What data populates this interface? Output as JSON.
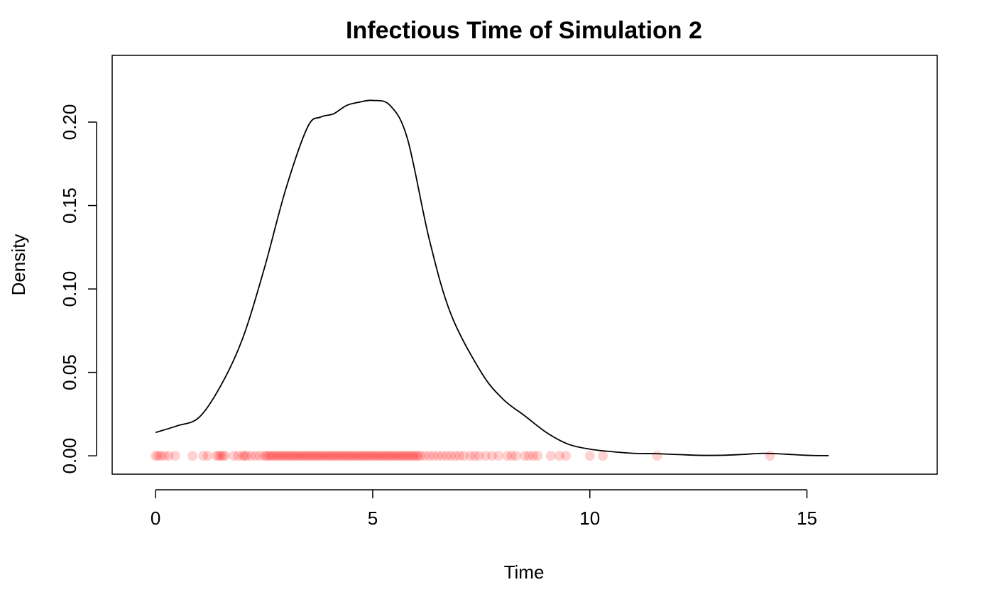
{
  "chart_data": {
    "type": "line",
    "title": "Infectious Time of Simulation 2",
    "xlabel": "Time",
    "ylabel": "Density",
    "xlim": [
      -1,
      18
    ],
    "ylim": [
      -0.011,
      0.24
    ],
    "x_ticks": [
      0,
      5,
      10,
      15
    ],
    "x_tick_labels": [
      "0",
      "5",
      "10",
      "15"
    ],
    "y_ticks": [
      0.0,
      0.05,
      0.1,
      0.15,
      0.2
    ],
    "y_tick_labels": [
      "0.00",
      "0.05",
      "0.10",
      "0.15",
      "0.20"
    ],
    "grid": false,
    "series": [
      {
        "line_color": "#000000",
        "x": [
          0.0,
          0.5,
          1.0,
          1.5,
          2.0,
          2.5,
          3.0,
          3.5,
          3.8,
          4.1,
          4.4,
          4.7,
          5.0,
          5.4,
          5.8,
          6.3,
          6.8,
          7.5,
          8.0,
          8.5,
          9.0,
          9.5,
          10.0,
          10.5,
          11.0,
          11.5,
          12.0,
          12.5,
          13.0,
          13.5,
          14.0,
          14.5,
          15.0,
          15.5
        ],
        "y": [
          0.014,
          0.018,
          0.023,
          0.042,
          0.07,
          0.112,
          0.16,
          0.197,
          0.203,
          0.205,
          0.21,
          0.212,
          0.213,
          0.21,
          0.19,
          0.13,
          0.085,
          0.05,
          0.034,
          0.024,
          0.014,
          0.007,
          0.004,
          0.0025,
          0.0015,
          0.0013,
          0.0008,
          0.0003,
          0.0003,
          0.0008,
          0.0015,
          0.001,
          0.0003,
          0.0001
        ]
      }
    ],
    "rug": {
      "color": "#ff0000",
      "opacity": 0.18,
      "y": 0,
      "x": [
        0.0,
        0.05,
        0.12,
        0.2,
        0.3,
        0.45,
        0.85,
        1.1,
        1.2,
        1.4,
        1.45,
        1.5,
        1.55,
        1.6,
        1.8,
        1.9,
        2.0,
        2.05,
        2.1,
        2.2,
        2.3,
        2.4,
        2.5,
        2.55,
        2.6,
        2.65,
        2.7,
        2.75,
        2.8,
        2.85,
        2.9,
        2.95,
        3.0,
        3.05,
        3.1,
        3.15,
        3.2,
        3.25,
        3.3,
        3.35,
        3.4,
        3.45,
        3.5,
        3.55,
        3.6,
        3.65,
        3.7,
        3.75,
        3.8,
        3.85,
        3.9,
        3.95,
        4.0,
        4.05,
        4.1,
        4.15,
        4.2,
        4.25,
        4.3,
        4.35,
        4.4,
        4.45,
        4.5,
        4.55,
        4.6,
        4.65,
        4.7,
        4.75,
        4.8,
        4.85,
        4.9,
        4.95,
        5.0,
        5.05,
        5.1,
        5.15,
        5.2,
        5.25,
        5.3,
        5.35,
        5.4,
        5.45,
        5.5,
        5.55,
        5.6,
        5.65,
        5.7,
        5.75,
        5.8,
        5.85,
        5.9,
        5.95,
        6.0,
        6.05,
        6.1,
        6.2,
        6.3,
        6.4,
        6.5,
        6.6,
        6.7,
        6.8,
        6.9,
        7.0,
        7.1,
        7.25,
        7.35,
        7.45,
        7.6,
        7.75,
        7.9,
        8.1,
        8.2,
        8.3,
        8.5,
        8.6,
        8.7,
        8.8,
        9.1,
        9.3,
        9.45,
        10.0,
        10.3,
        11.55,
        14.15
      ]
    }
  }
}
